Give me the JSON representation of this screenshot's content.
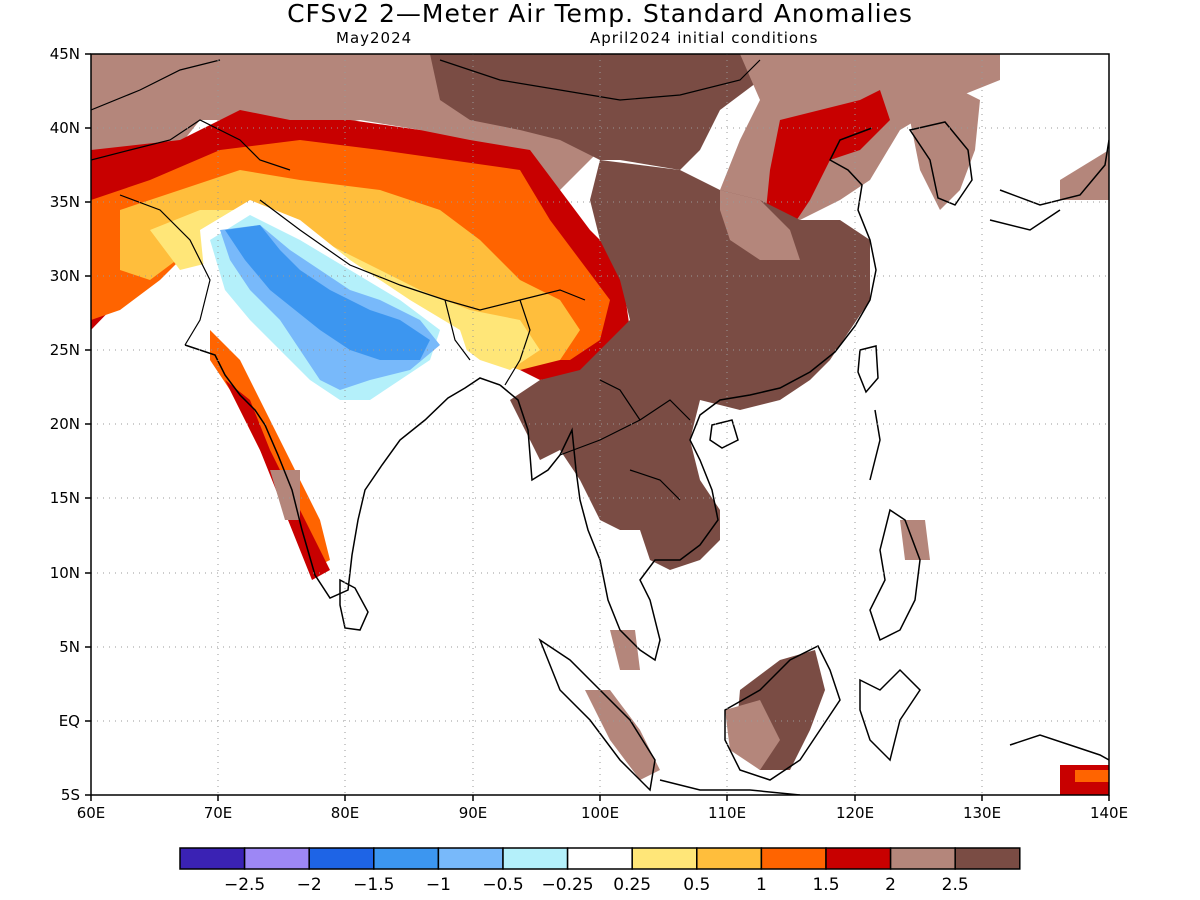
{
  "header": {
    "title": "CFSv2 2—Meter Air Temp. Standard Anomalies",
    "valid_month": "May2024",
    "init_conditions": "April2024 initial conditions"
  },
  "map": {
    "lon_range": [
      60,
      140
    ],
    "lat_range": [
      -5,
      45
    ],
    "lon_ticks": [
      "60E",
      "70E",
      "80E",
      "90E",
      "100E",
      "110E",
      "120E",
      "130E",
      "140E"
    ],
    "lat_ticks": [
      "45N",
      "40N",
      "35N",
      "30N",
      "25N",
      "20N",
      "15N",
      "10N",
      "5N",
      "EQ",
      "5S"
    ],
    "grid": "dotted"
  },
  "colorbar": {
    "colors": [
      "#3a22b4",
      "#9d87f5",
      "#1e64e6",
      "#3c96f0",
      "#78b9fa",
      "#b4f0fa",
      "#ffffff",
      "#ffe678",
      "#ffbe3c",
      "#ff6400",
      "#c80000",
      "#b4867b",
      "#7a4c44"
    ],
    "labels": [
      "−2.5",
      "−2",
      "−1.5",
      "−1",
      "−0.5",
      "−0.25",
      "0.25",
      "0.5",
      "1",
      "1.5",
      "2",
      "2.5"
    ]
  },
  "chart_data": {
    "type": "heatmap",
    "title": "CFSv2 2—Meter Air Temp. Standard Anomalies",
    "subtitle": "May2024 / April2024 initial conditions",
    "variable": "2-meter air temperature standardized anomaly",
    "x_axis": "longitude",
    "y_axis": "latitude",
    "xlim": [
      60,
      140
    ],
    "ylim": [
      -5,
      45
    ],
    "levels": [
      -2.5,
      -2,
      -1.5,
      -1,
      -0.5,
      -0.25,
      0.25,
      0.5,
      1,
      1.5,
      2,
      2.5
    ],
    "regions": [
      {
        "lon": [
          60,
          100
        ],
        "lat": [
          35,
          45
        ],
        "level": 2
      },
      {
        "lon": [
          100,
          120
        ],
        "lat": [
          35,
          45
        ],
        "level": 2.5
      },
      {
        "lon": [
          60,
          75
        ],
        "lat": [
          25,
          35
        ],
        "level": 1.5
      },
      {
        "lon": [
          72,
          80
        ],
        "lat": [
          28,
          34
        ],
        "level": -1
      },
      {
        "lon": [
          76,
          90
        ],
        "lat": [
          22,
          30
        ],
        "level": -0.5
      },
      {
        "lon": [
          80,
          90
        ],
        "lat": [
          18,
          25
        ],
        "level": 0
      },
      {
        "lon": [
          88,
          100
        ],
        "lat": [
          23,
          30
        ],
        "level": 0.5
      },
      {
        "lon": [
          75,
          80
        ],
        "lat": [
          10,
          20
        ],
        "level": 1.5
      },
      {
        "lon": [
          98,
          122
        ],
        "lat": [
          20,
          32
        ],
        "level": 2.5
      },
      {
        "lon": [
          97,
          110
        ],
        "lat": [
          10,
          22
        ],
        "level": 2.5
      },
      {
        "lon": [
          108,
          118
        ],
        "lat": [
          -4,
          4
        ],
        "level": 2.5
      }
    ]
  }
}
